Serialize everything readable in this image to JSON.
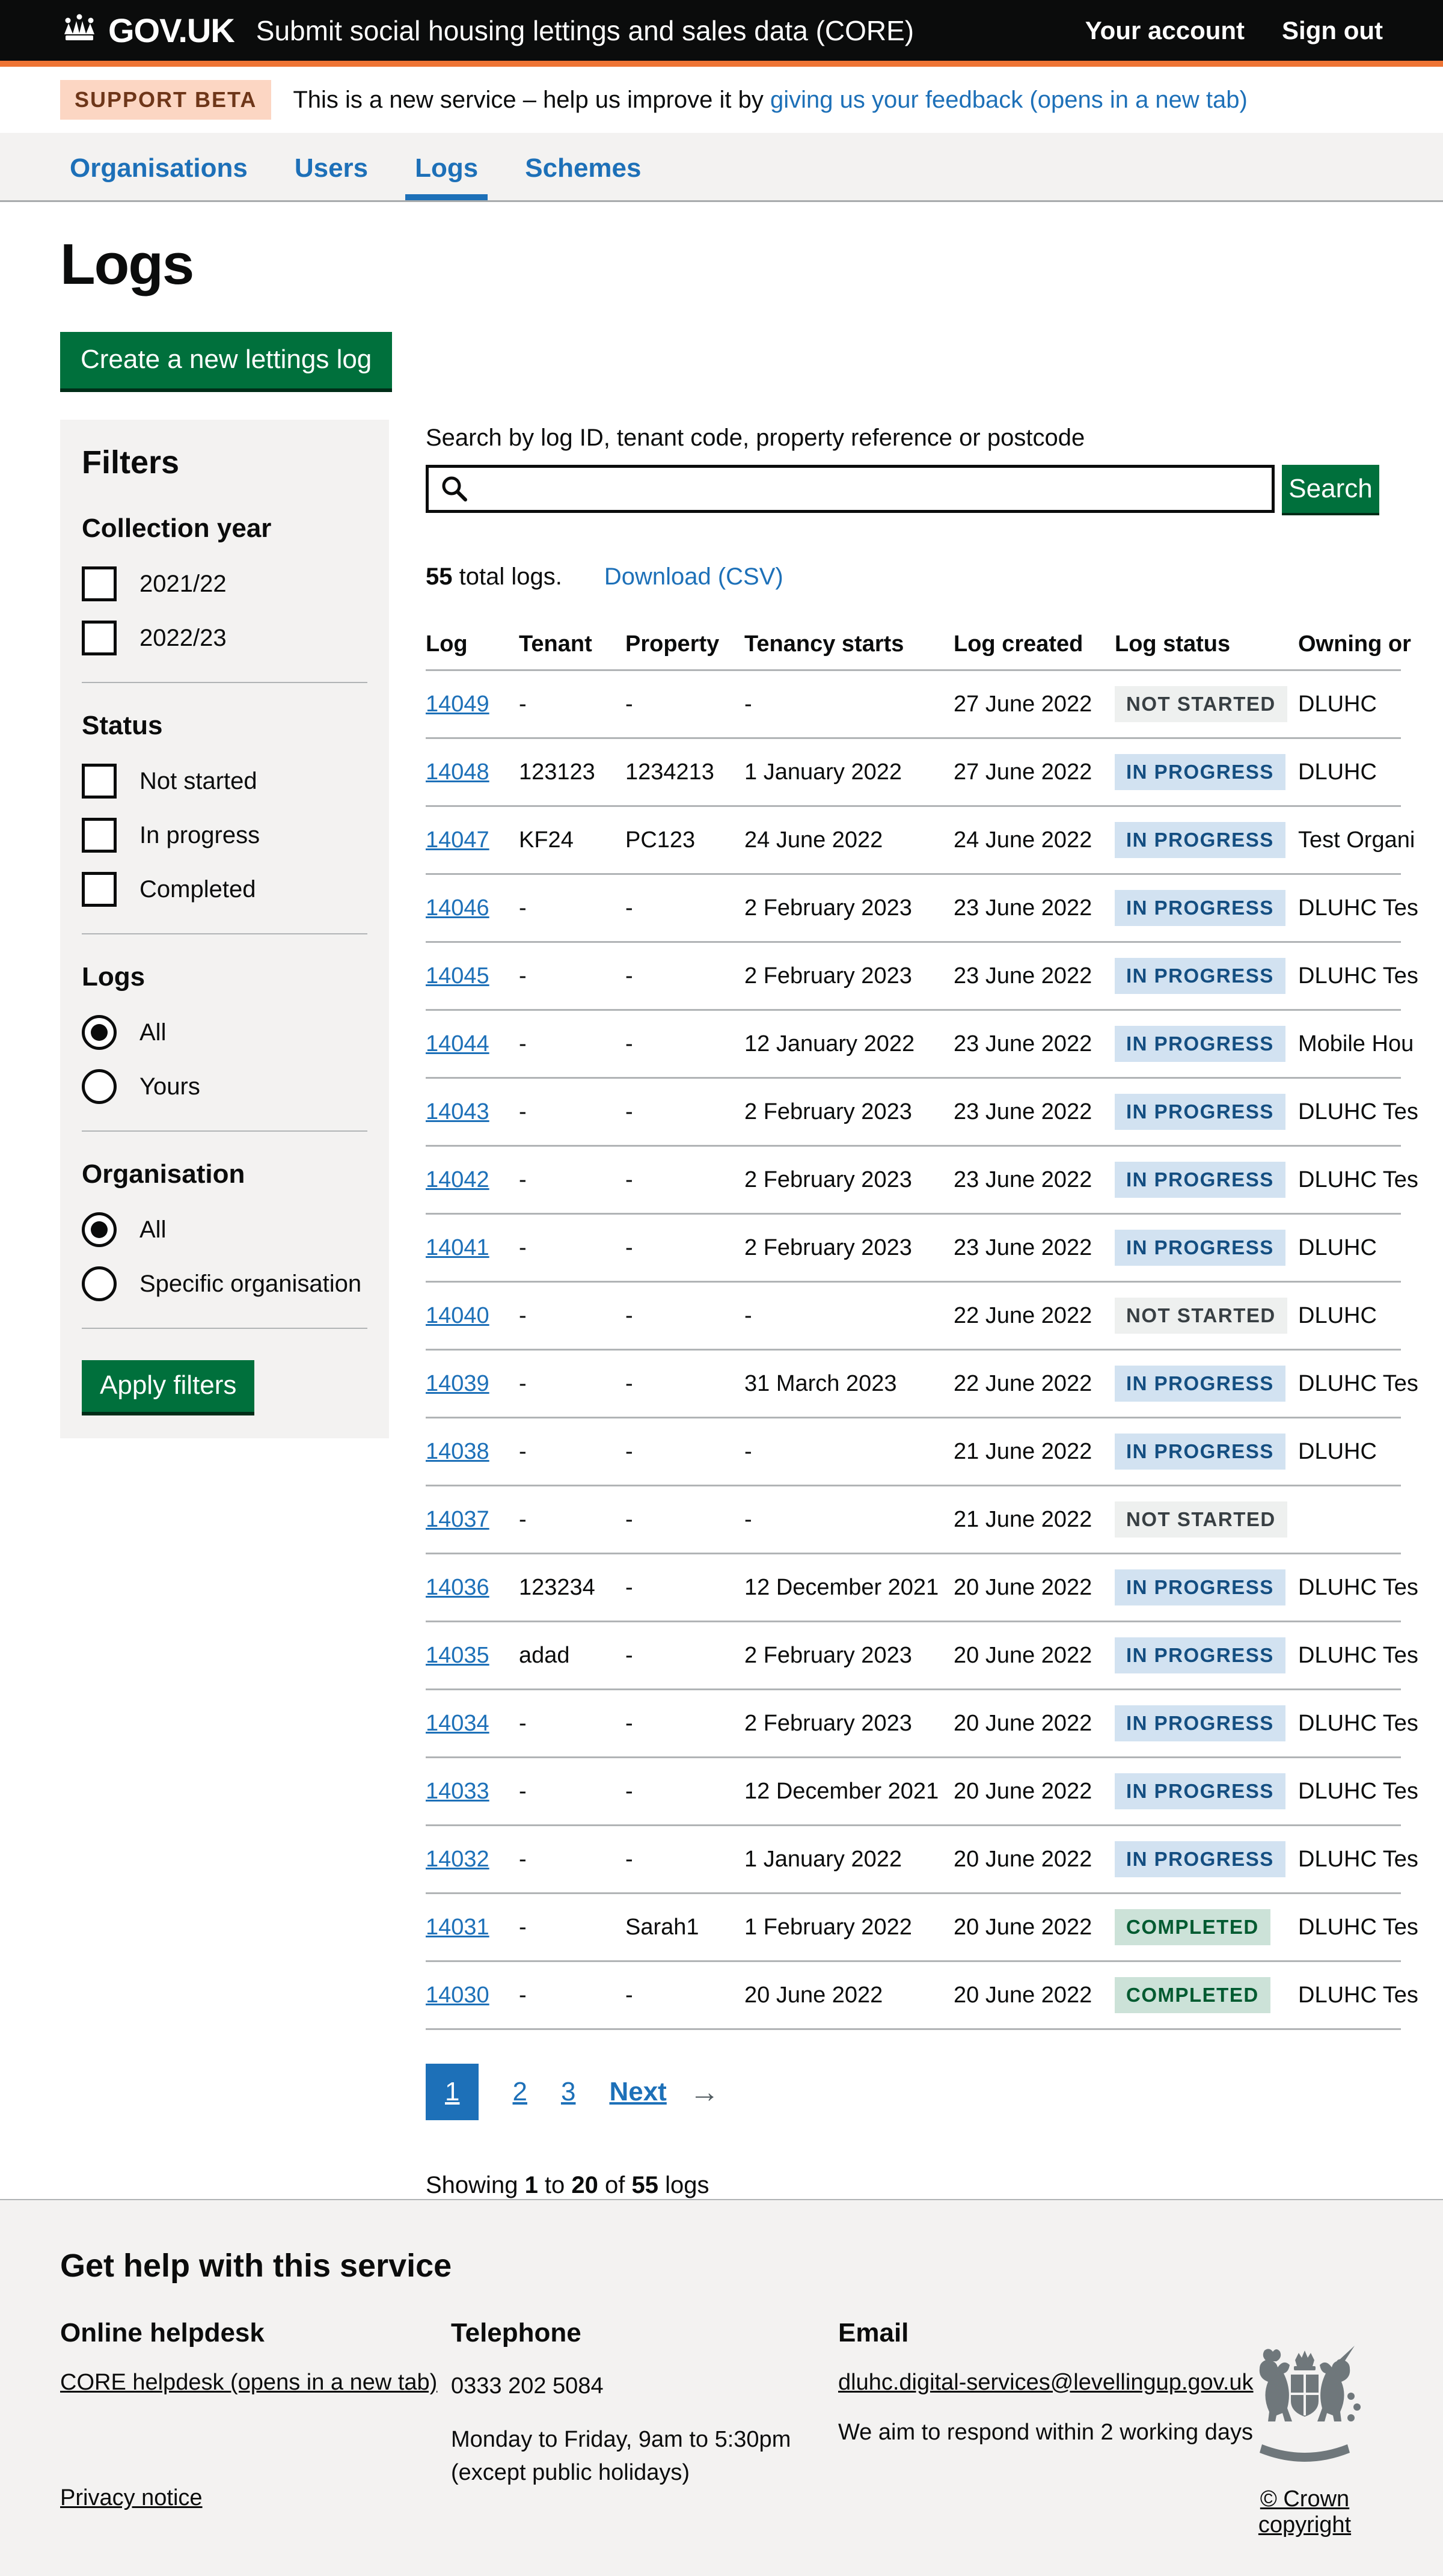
{
  "colors": {
    "header_bg": "#0b0c0c",
    "accent_orange": "#ee7434",
    "brand_blue": "#1d70b8",
    "button_green": "#00703c",
    "panel_grey": "#f3f2f1",
    "border_grey": "#b1b4b6",
    "tag_bg": "#fcd6c3",
    "tag_text": "#6e3619",
    "badge_grey_bg": "#eef0ef",
    "badge_grey_text": "#383f43",
    "badge_blue_bg": "#d2e2f1",
    "badge_blue_text": "#144e81",
    "badge_green_bg": "#cce2d8",
    "badge_green_text": "#005a30"
  },
  "header": {
    "logo": "GOV.UK",
    "service_name": "Submit social housing lettings and sales data (CORE)",
    "links": [
      "Your account",
      "Sign out"
    ]
  },
  "phase_banner": {
    "tag": "SUPPORT BETA",
    "text": "This is a new service – help us improve it by",
    "link_text": "giving us your feedback (opens in a new tab)"
  },
  "nav": {
    "items": [
      {
        "label": "Organisations",
        "active": false
      },
      {
        "label": "Users",
        "active": false
      },
      {
        "label": "Logs",
        "active": true
      },
      {
        "label": "Schemes",
        "active": false
      }
    ]
  },
  "page": {
    "title": "Logs",
    "create_button_label": "Create a new lettings log"
  },
  "filters": {
    "title": "Filters",
    "groups": [
      {
        "label": "Collection year",
        "type": "checkbox",
        "options": [
          {
            "label": "2021/22",
            "checked": false
          },
          {
            "label": "2022/23",
            "checked": false
          }
        ]
      },
      {
        "label": "Status",
        "type": "checkbox",
        "options": [
          {
            "label": "Not started",
            "checked": false
          },
          {
            "label": "In progress",
            "checked": false
          },
          {
            "label": "Completed",
            "checked": false
          }
        ]
      },
      {
        "label": "Logs",
        "type": "radio",
        "options": [
          {
            "label": "All",
            "checked": true
          },
          {
            "label": "Yours",
            "checked": false
          }
        ]
      },
      {
        "label": "Organisation",
        "type": "radio",
        "options": [
          {
            "label": "All",
            "checked": true
          },
          {
            "label": "Specific organisation",
            "checked": false
          }
        ]
      }
    ],
    "apply_button_label": "Apply filters"
  },
  "search": {
    "label": "Search by log ID, tenant code, property reference or postcode",
    "value": "",
    "placeholder": "",
    "button_label": "Search"
  },
  "results_bar": {
    "total": "55",
    "total_suffix": " total logs.",
    "download_link": "Download (CSV)"
  },
  "table": {
    "columns": [
      "Log",
      "Tenant",
      "Property",
      "Tenancy starts",
      "Log created",
      "Log status",
      "Owning or"
    ],
    "rows": [
      {
        "log": "14049",
        "tenant": "-",
        "property": "-",
        "tenancy_starts": "-",
        "log_created": "27 June 2022",
        "status": "NOT STARTED",
        "status_style": "grey",
        "owning": "DLUHC"
      },
      {
        "log": "14048",
        "tenant": "123123",
        "property": "1234213",
        "tenancy_starts": "1 January 2022",
        "log_created": "27 June 2022",
        "status": "IN PROGRESS",
        "status_style": "blue",
        "owning": "DLUHC"
      },
      {
        "log": "14047",
        "tenant": "KF24",
        "property": "PC123",
        "tenancy_starts": "24 June 2022",
        "log_created": "24 June 2022",
        "status": "IN PROGRESS",
        "status_style": "blue",
        "owning": "Test Organi"
      },
      {
        "log": "14046",
        "tenant": "-",
        "property": "-",
        "tenancy_starts": "2 February 2023",
        "log_created": "23 June 2022",
        "status": "IN PROGRESS",
        "status_style": "blue",
        "owning": "DLUHC Tes"
      },
      {
        "log": "14045",
        "tenant": "-",
        "property": "-",
        "tenancy_starts": "2 February 2023",
        "log_created": "23 June 2022",
        "status": "IN PROGRESS",
        "status_style": "blue",
        "owning": "DLUHC Tes"
      },
      {
        "log": "14044",
        "tenant": "-",
        "property": "-",
        "tenancy_starts": "12 January 2022",
        "log_created": "23 June 2022",
        "status": "IN PROGRESS",
        "status_style": "blue",
        "owning": "Mobile Hou"
      },
      {
        "log": "14043",
        "tenant": "-",
        "property": "-",
        "tenancy_starts": "2 February 2023",
        "log_created": "23 June 2022",
        "status": "IN PROGRESS",
        "status_style": "blue",
        "owning": "DLUHC Tes"
      },
      {
        "log": "14042",
        "tenant": "-",
        "property": "-",
        "tenancy_starts": "2 February 2023",
        "log_created": "23 June 2022",
        "status": "IN PROGRESS",
        "status_style": "blue",
        "owning": "DLUHC Tes"
      },
      {
        "log": "14041",
        "tenant": "-",
        "property": "-",
        "tenancy_starts": "2 February 2023",
        "log_created": "23 June 2022",
        "status": "IN PROGRESS",
        "status_style": "blue",
        "owning": "DLUHC"
      },
      {
        "log": "14040",
        "tenant": "-",
        "property": "-",
        "tenancy_starts": "-",
        "log_created": "22 June 2022",
        "status": "NOT STARTED",
        "status_style": "grey",
        "owning": "DLUHC"
      },
      {
        "log": "14039",
        "tenant": "-",
        "property": "-",
        "tenancy_starts": "31 March 2023",
        "log_created": "22 June 2022",
        "status": "IN PROGRESS",
        "status_style": "blue",
        "owning": "DLUHC Tes"
      },
      {
        "log": "14038",
        "tenant": "-",
        "property": "-",
        "tenancy_starts": "-",
        "log_created": "21 June 2022",
        "status": "IN PROGRESS",
        "status_style": "blue",
        "owning": "DLUHC"
      },
      {
        "log": "14037",
        "tenant": "-",
        "property": "-",
        "tenancy_starts": "-",
        "log_created": "21 June 2022",
        "status": "NOT STARTED",
        "status_style": "grey",
        "owning": ""
      },
      {
        "log": "14036",
        "tenant": "123234",
        "property": "-",
        "tenancy_starts": "12 December 2021",
        "log_created": "20 June 2022",
        "status": "IN PROGRESS",
        "status_style": "blue",
        "owning": "DLUHC Tes"
      },
      {
        "log": "14035",
        "tenant": "adad",
        "property": "-",
        "tenancy_starts": "2 February 2023",
        "log_created": "20 June 2022",
        "status": "IN PROGRESS",
        "status_style": "blue",
        "owning": "DLUHC Tes"
      },
      {
        "log": "14034",
        "tenant": "-",
        "property": "-",
        "tenancy_starts": "2 February 2023",
        "log_created": "20 June 2022",
        "status": "IN PROGRESS",
        "status_style": "blue",
        "owning": "DLUHC Tes"
      },
      {
        "log": "14033",
        "tenant": "-",
        "property": "-",
        "tenancy_starts": "12 December 2021",
        "log_created": "20 June 2022",
        "status": "IN PROGRESS",
        "status_style": "blue",
        "owning": "DLUHC Tes"
      },
      {
        "log": "14032",
        "tenant": "-",
        "property": "-",
        "tenancy_starts": "1 January 2022",
        "log_created": "20 June 2022",
        "status": "IN PROGRESS",
        "status_style": "blue",
        "owning": "DLUHC Tes"
      },
      {
        "log": "14031",
        "tenant": "-",
        "property": "Sarah1",
        "tenancy_starts": "1 February 2022",
        "log_created": "20 June 2022",
        "status": "COMPLETED",
        "status_style": "green",
        "owning": "DLUHC Tes"
      },
      {
        "log": "14030",
        "tenant": "-",
        "property": "-",
        "tenancy_starts": "20 June 2022",
        "log_created": "20 June 2022",
        "status": "COMPLETED",
        "status_style": "green",
        "owning": "DLUHC Tes"
      }
    ]
  },
  "pagination": {
    "pages": [
      "1",
      "2",
      "3"
    ],
    "current": "1",
    "next_label": "Next",
    "next_arrow": "→"
  },
  "showing": {
    "prefix": "Showing ",
    "from": "1",
    "to_word": " to ",
    "to": "20",
    "of_word": " of ",
    "total": "55",
    "suffix": " logs"
  },
  "footer": {
    "heading": "Get help with this service",
    "columns": [
      {
        "heading": "Online helpdesk",
        "link": "CORE helpdesk (opens in a new tab)",
        "paragraphs": []
      },
      {
        "heading": "Telephone",
        "link": "",
        "paragraphs": [
          "0333 202 5084",
          "Monday to Friday, 9am to 5:30pm\n(except public holidays)"
        ]
      },
      {
        "heading": "Email",
        "link": "dluhc.digital-services@levellingup.gov.uk",
        "paragraphs": [
          "We aim to respond within 2 working days"
        ]
      }
    ],
    "privacy_link": "Privacy notice",
    "copyright_link": "© Crown copyright",
    "crest_icon": "royal-coat-of-arms"
  }
}
